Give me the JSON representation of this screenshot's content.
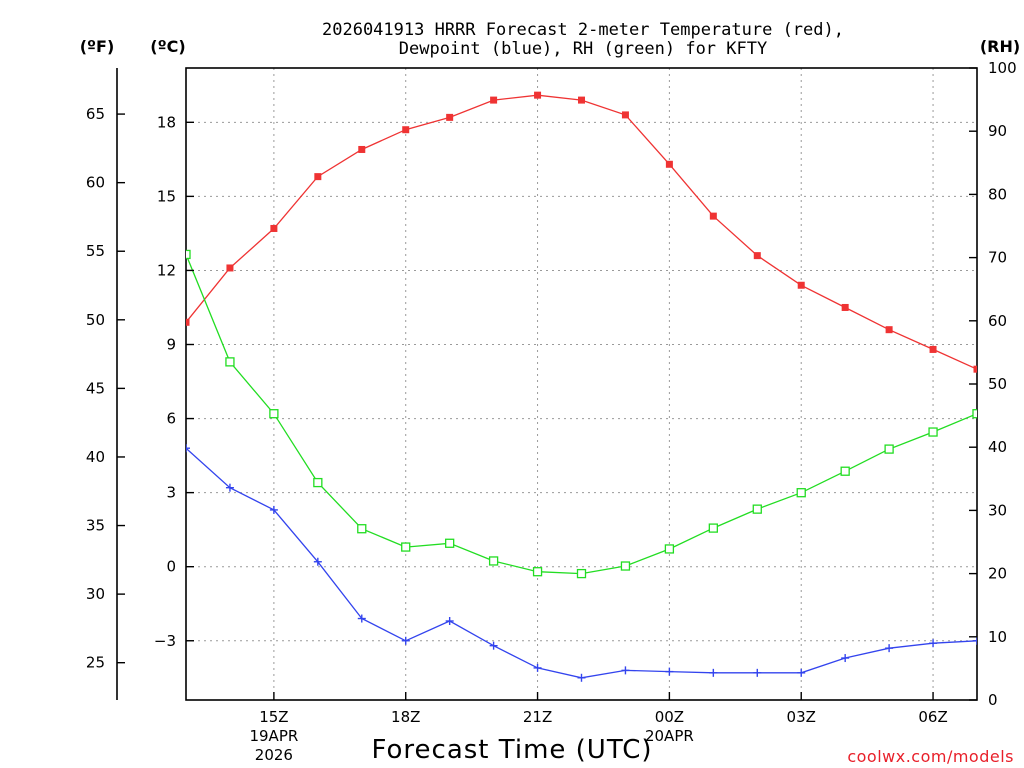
{
  "chart_data": {
    "type": "line",
    "title_line1": "2026041913 HRRR Forecast 2-meter Temperature (red),",
    "title_line2": "Dewpoint (blue), RH (green) for KFTY",
    "unit_f": "(ºF)",
    "unit_c": "(ºC)",
    "unit_rh": "(RH)",
    "xlabel": "Forecast Time (UTC)",
    "credit": "coolwx.com/models",
    "x_range": [
      13,
      31
    ],
    "x_ticks": [
      {
        "x": 15,
        "label": "15Z",
        "sub1": "19APR",
        "sub2": "2026"
      },
      {
        "x": 18,
        "label": "18Z",
        "sub1": "",
        "sub2": ""
      },
      {
        "x": 21,
        "label": "21Z",
        "sub1": "",
        "sub2": ""
      },
      {
        "x": 24,
        "label": "00Z",
        "sub1": "20APR",
        "sub2": ""
      },
      {
        "x": 27,
        "label": "03Z",
        "sub1": "",
        "sub2": ""
      },
      {
        "x": 30,
        "label": "06Z",
        "sub1": "",
        "sub2": ""
      }
    ],
    "celsius_axis": {
      "range": [
        -5.4,
        20.2
      ],
      "ticks": [
        {
          "v": 18,
          "label": "18"
        },
        {
          "v": 15,
          "label": "15"
        },
        {
          "v": 12,
          "label": "12"
        },
        {
          "v": 9,
          "label": "9"
        },
        {
          "v": 6,
          "label": "6"
        },
        {
          "v": 3,
          "label": "3"
        },
        {
          "v": 0,
          "label": "0"
        },
        {
          "v": -3,
          "label": "−3"
        }
      ]
    },
    "fahrenheit_axis": {
      "ticks": [
        {
          "v": 65,
          "label": "65"
        },
        {
          "v": 60,
          "label": "60"
        },
        {
          "v": 55,
          "label": "55"
        },
        {
          "v": 50,
          "label": "50"
        },
        {
          "v": 45,
          "label": "45"
        },
        {
          "v": 40,
          "label": "40"
        },
        {
          "v": 35,
          "label": "35"
        },
        {
          "v": 30,
          "label": "30"
        },
        {
          "v": 25,
          "label": "25"
        }
      ]
    },
    "rh_axis": {
      "range": [
        0,
        100
      ],
      "ticks": [
        {
          "v": 100,
          "label": "100"
        },
        {
          "v": 90,
          "label": "90"
        },
        {
          "v": 80,
          "label": "80"
        },
        {
          "v": 70,
          "label": "70"
        },
        {
          "v": 60,
          "label": "60"
        },
        {
          "v": 50,
          "label": "50"
        },
        {
          "v": 40,
          "label": "40"
        },
        {
          "v": 30,
          "label": "30"
        },
        {
          "v": 20,
          "label": "20"
        },
        {
          "v": 10,
          "label": "10"
        },
        {
          "v": 0,
          "label": "0"
        }
      ]
    },
    "series": [
      {
        "name": "Temperature",
        "axis": "c",
        "color": "#ef3333",
        "marker": "filled-square",
        "x": [
          13,
          14,
          15,
          16,
          17,
          18,
          19,
          20,
          21,
          22,
          23,
          24,
          25,
          26,
          27,
          28,
          29,
          30,
          31
        ],
        "values": [
          9.9,
          12.1,
          13.7,
          15.8,
          16.9,
          17.7,
          18.2,
          18.9,
          19.1,
          18.9,
          18.3,
          16.3,
          14.2,
          12.6,
          11.4,
          10.5,
          9.6,
          8.8,
          8.0
        ]
      },
      {
        "name": "Dewpoint",
        "axis": "c",
        "color": "#3344ee",
        "marker": "plus",
        "x": [
          13,
          14,
          15,
          16,
          17,
          18,
          19,
          20,
          21,
          22,
          23,
          24,
          25,
          26,
          27,
          28,
          29,
          30,
          31
        ],
        "values": [
          4.8,
          3.2,
          2.3,
          0.2,
          -2.1,
          -3.0,
          -2.2,
          -3.2,
          -4.1,
          -4.5,
          -4.2,
          -4.25,
          -4.3,
          -4.3,
          -4.3,
          -3.7,
          -3.3,
          -3.1,
          -3.0
        ]
      },
      {
        "name": "RH",
        "axis": "rh",
        "color": "#22dd22",
        "marker": "open-square",
        "x": [
          13,
          14,
          15,
          16,
          17,
          18,
          19,
          20,
          21,
          22,
          23,
          24,
          25,
          26,
          27,
          28,
          29,
          30,
          31
        ],
        "values": [
          70.5,
          53.5,
          45.3,
          34.4,
          27.1,
          24.2,
          24.8,
          22.0,
          20.3,
          20.0,
          21.2,
          23.9,
          27.2,
          30.2,
          32.8,
          36.2,
          39.7,
          42.4,
          45.3
        ]
      }
    ]
  }
}
